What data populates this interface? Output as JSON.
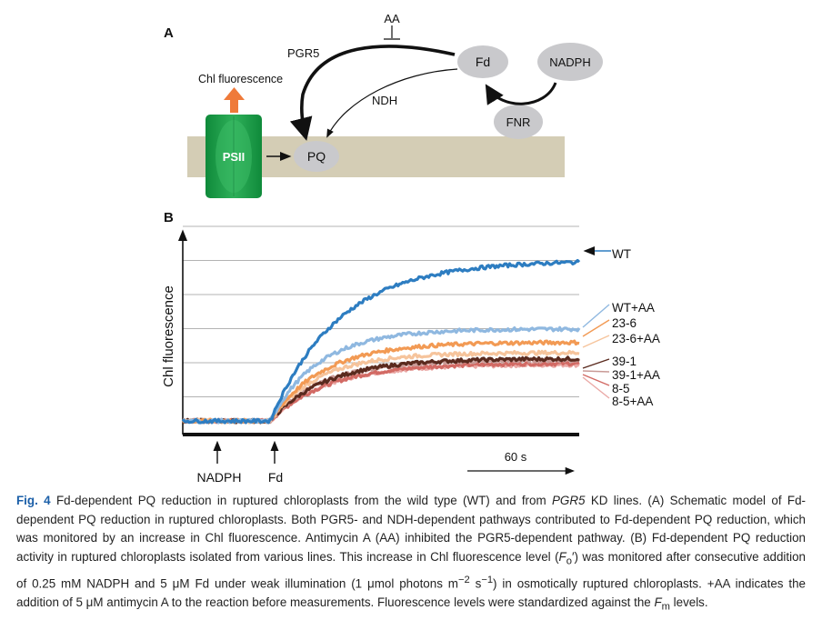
{
  "panel_a": {
    "letter": "A",
    "inhibitor": "AA",
    "pgr5_label": "PGR5",
    "ndh_label": "NDH",
    "fd": "Fd",
    "nadph": "NADPH",
    "fnr": "FNR",
    "pq": "PQ",
    "psii": "PSII",
    "chl_fluorescence": "Chl fluorescence"
  },
  "panel_b": {
    "letter": "B",
    "ylabel": "Chl fluorescence",
    "addition_nadph": "NADPH",
    "addition_fd": "Fd",
    "time_scale": "60 s",
    "labels": [
      "WT",
      "WT+AA",
      "23-6",
      "23-6+AA",
      "39-1",
      "39-1+AA",
      "8-5",
      "8-5+AA"
    ]
  },
  "chart_data": {
    "type": "line",
    "title": "",
    "xlabel": "",
    "ylabel": "Chl fluorescence",
    "x_unit_note": "time in seconds; scale bar = 60 s",
    "events": [
      {
        "label": "NADPH",
        "t": 20
      },
      {
        "label": "Fd",
        "t": 54
      }
    ],
    "ylim": [
      0,
      6.3
    ],
    "xlim": [
      0,
      245
    ],
    "series": [
      {
        "name": "WT",
        "color": "#2d7dc1",
        "baseline": 0.15,
        "plateau": 5.55,
        "tau": 42
      },
      {
        "name": "WT+AA",
        "color": "#8fb8e0",
        "baseline": 0.15,
        "plateau": 3.25,
        "tau": 30
      },
      {
        "name": "23-6",
        "color": "#f29a54",
        "baseline": 0.15,
        "plateau": 2.8,
        "tau": 32
      },
      {
        "name": "23-6+AA",
        "color": "#f6c49c",
        "baseline": 0.15,
        "plateau": 2.45,
        "tau": 30
      },
      {
        "name": "39-1",
        "color": "#5a2a1e",
        "baseline": 0.15,
        "plateau": 2.25,
        "tau": 34
      },
      {
        "name": "39-1+AA",
        "color": "#c99a96",
        "baseline": 0.15,
        "plateau": 2.2,
        "tau": 32
      },
      {
        "name": "8-5",
        "color": "#d26a64",
        "baseline": 0.15,
        "plateau": 2.1,
        "tau": 36
      },
      {
        "name": "8-5+AA",
        "color": "#eaa9a6",
        "baseline": 0.15,
        "plateau": 2.05,
        "tau": 34
      }
    ]
  },
  "caption": {
    "fig_label": "Fig. 4",
    "text_1": " Fd-dependent PQ reduction in ruptured chloroplasts from the wild type (WT) and from ",
    "pgr5_italic": "PGR5",
    "text_2": " KD lines. (A) Schematic model of Fd-dependent PQ reduction in ruptured chloroplasts. Both PGR5- and NDH-dependent pathways contributed to Fd-dependent PQ reduction, which was monitored by an increase in Chl fluorescence. Antimycin A (AA) inhibited the PGR5-dependent pathway. (B) Fd-dependent PQ reduction activity in ruptured chloroplasts isolated from various lines. This increase in Chl fluorescence level (",
    "fo_symbol": "F",
    "fo_sub": "o",
    "fo_prime": "′",
    "text_3": ") was monitored after consecutive addition of 0.25 mM NADPH and 5 μM Fd under weak illumination (1 μmol photons m",
    "sup_1": "−2",
    "text_4": " s",
    "sup_2": "−1",
    "text_5": ") in osmotically ruptured chloroplasts. +AA indicates the addition of 5 μM antimycin A to the reaction before measurements. Fluorescence levels were standardized against the ",
    "fm_symbol": "F",
    "fm_sub": "m",
    "text_6": " levels."
  }
}
